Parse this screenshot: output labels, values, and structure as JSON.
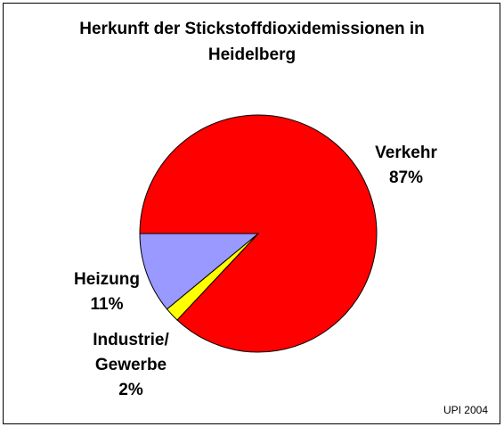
{
  "chart_data": {
    "type": "pie",
    "title": "Herkunft der Stickstoffdioxidemissionen in Heidelberg",
    "categories": [
      "Verkehr",
      "Industrie/ Gewerbe",
      "Heizung"
    ],
    "values": [
      87,
      2,
      11
    ],
    "value_labels": [
      "87%",
      "2%",
      "11%"
    ],
    "colors": [
      "#ff0000",
      "#ffff00",
      "#9999ff"
    ],
    "source": "UPI 2004"
  }
}
